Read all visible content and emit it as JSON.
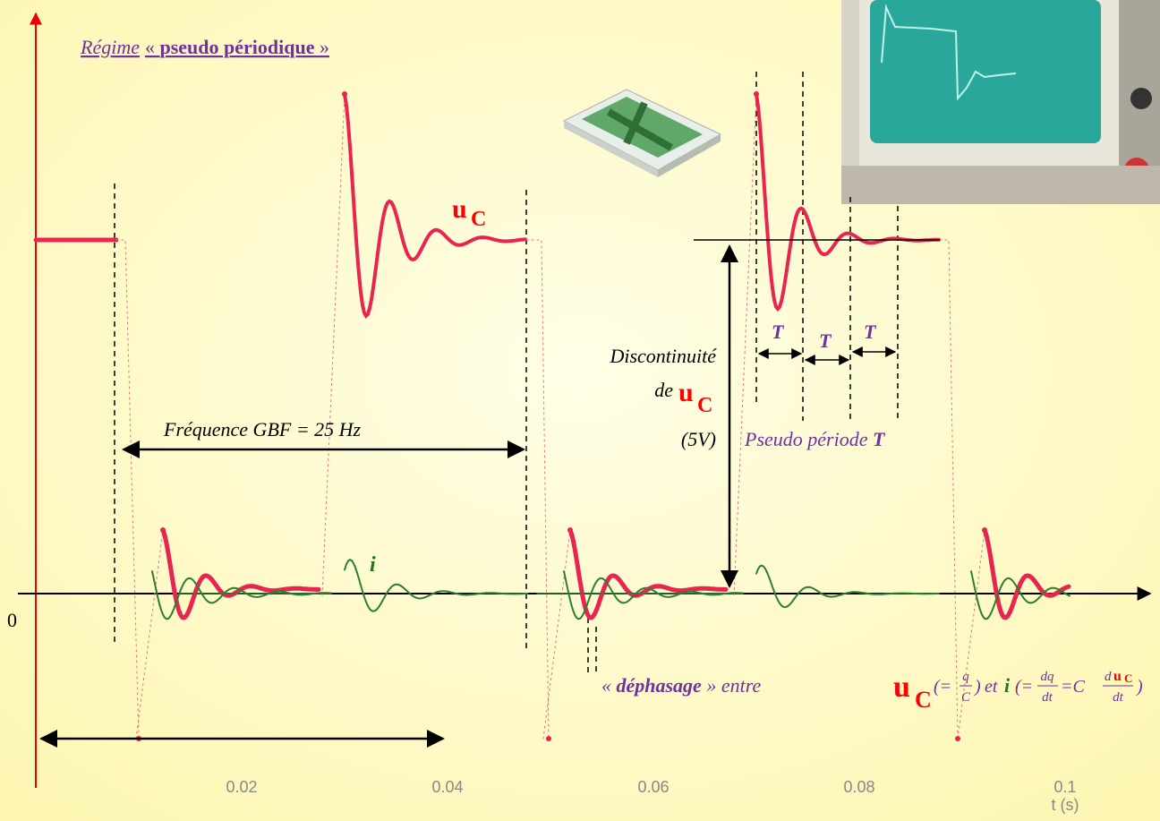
{
  "title": {
    "parts": [
      "Régime",
      "« ",
      "pseudo périodique",
      " »"
    ]
  },
  "uc_label": {
    "symbol": "u",
    "subscript": "C"
  },
  "discontinuity": {
    "line1": "Discontinuité",
    "line2": "de",
    "symbol": "u",
    "subscript": "C",
    "value": "(5V)"
  },
  "frequency": "Fréquence GBF = 25 Hz",
  "period_marks": [
    "T",
    "T",
    "T"
  ],
  "pseudo_period": {
    "text": "Pseudo période",
    "symbol": "T"
  },
  "current_label": "i",
  "origin_label": "0",
  "phase": {
    "open": "« ",
    "word": "déphasage",
    "rest": " » entre",
    "u": "u",
    "u_sub": "C",
    "eq1": "(=",
    "q": "q",
    "c": "C",
    "close1": ")",
    "et": "et",
    "i": "i",
    "eq2": "(=",
    "dq": "dq",
    "dt1": "dt",
    "eq3": "=C",
    "d": "d",
    "du": "u",
    "du_sub": "C",
    "dt2": "dt",
    "close2": ")"
  },
  "x_axis": {
    "ticks": [
      0.02,
      0.04,
      0.06,
      0.08,
      0.1
    ],
    "label": "t (s)"
  }
}
